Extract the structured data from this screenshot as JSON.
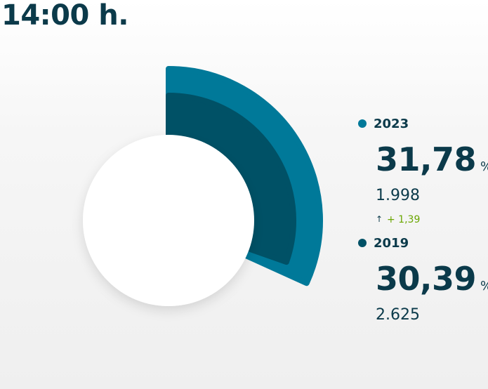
{
  "header": {
    "title": "14:00 h."
  },
  "chart_data": {
    "type": "pie",
    "title": "",
    "series": [
      {
        "name": "2023",
        "percent": 31.78,
        "count": 1998,
        "display_percent": "31,78",
        "display_count": "1.998",
        "color": "#007999"
      },
      {
        "name": "2019",
        "percent": 30.39,
        "count": 2625,
        "display_percent": "30,39",
        "display_count": "2.625",
        "color": "#005166"
      }
    ],
    "difference": {
      "direction": "up",
      "value": 1.39,
      "display": "+ 1,39",
      "color": "#6aa600"
    }
  },
  "legend": {
    "unit": "%"
  }
}
